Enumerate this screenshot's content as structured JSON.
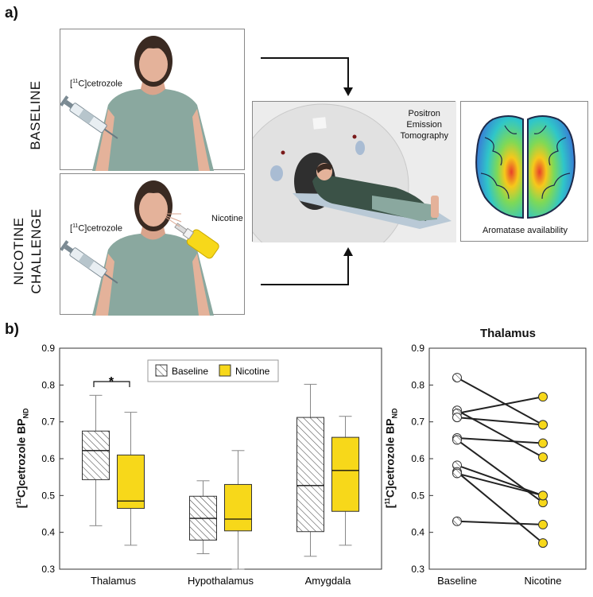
{
  "panel_a": {
    "label": "a)",
    "baseline_label": "BASELINE",
    "nicotine_label_line1": "NICOTINE",
    "nicotine_label_line2": "CHALLENGE",
    "tracer_prefix": "[",
    "tracer_sup": "11",
    "tracer_suffix": "C]cetrozole",
    "nicotine_text": "Nicotine",
    "pet_line1": "Positron",
    "pet_line2": "Emission",
    "pet_line3": "Tomography",
    "brain_caption": "Aromatase availability"
  },
  "panel_b": {
    "label": "b)",
    "ylabel_prefix": "[",
    "ylabel_sup": "11",
    "ylabel_main": "C]cetrozole BP",
    "ylabel_sub": "ND",
    "legend": [
      "Baseline",
      "Nicotine"
    ],
    "significance": "*",
    "right_title": "Thalamus"
  },
  "colors": {
    "nicotine": "#f7d81a",
    "baseline_hatch": "#444444",
    "skin": "#e4b29a",
    "shirt": "#8aa89f",
    "hair": "#3a2a22"
  },
  "chart_data": [
    {
      "type": "box",
      "title": "",
      "ylim": [
        0.3,
        0.9
      ],
      "yticks": [
        "0.3",
        "0.4",
        "0.5",
        "0.6",
        "0.7",
        "0.8",
        "0.9"
      ],
      "categories": [
        "Thalamus",
        "Hypothalamus",
        "Amygdala"
      ],
      "series": [
        {
          "name": "Baseline",
          "boxes": [
            {
              "min": 0.418,
              "q1": 0.543,
              "median": 0.622,
              "q3": 0.675,
              "max": 0.772
            },
            {
              "min": 0.342,
              "q1": 0.379,
              "median": 0.438,
              "q3": 0.498,
              "max": 0.54
            },
            {
              "min": 0.335,
              "q1": 0.402,
              "median": 0.527,
              "q3": 0.712,
              "max": 0.802
            }
          ]
        },
        {
          "name": "Nicotine",
          "boxes": [
            {
              "min": 0.365,
              "q1": 0.465,
              "median": 0.485,
              "q3": 0.61,
              "max": 0.726
            },
            {
              "min": 0.3,
              "q1": 0.404,
              "median": 0.436,
              "q3": 0.53,
              "max": 0.622
            },
            {
              "min": 0.365,
              "q1": 0.457,
              "median": 0.568,
              "q3": 0.658,
              "max": 0.715
            }
          ]
        }
      ]
    },
    {
      "type": "paired-line",
      "title": "Thalamus",
      "ylim": [
        0.3,
        0.9
      ],
      "yticks": [
        "0.3",
        "0.4",
        "0.5",
        "0.6",
        "0.7",
        "0.8",
        "0.9"
      ],
      "categories": [
        "Baseline",
        "Nicotine"
      ],
      "pairs": [
        [
          0.82,
          0.692
        ],
        [
          0.731,
          0.604
        ],
        [
          0.723,
          0.768
        ],
        [
          0.712,
          0.692
        ],
        [
          0.656,
          0.642
        ],
        [
          0.651,
          0.481
        ],
        [
          0.582,
          0.5
        ],
        [
          0.564,
          0.371
        ],
        [
          0.56,
          0.5
        ],
        [
          0.43,
          0.421
        ]
      ]
    }
  ]
}
